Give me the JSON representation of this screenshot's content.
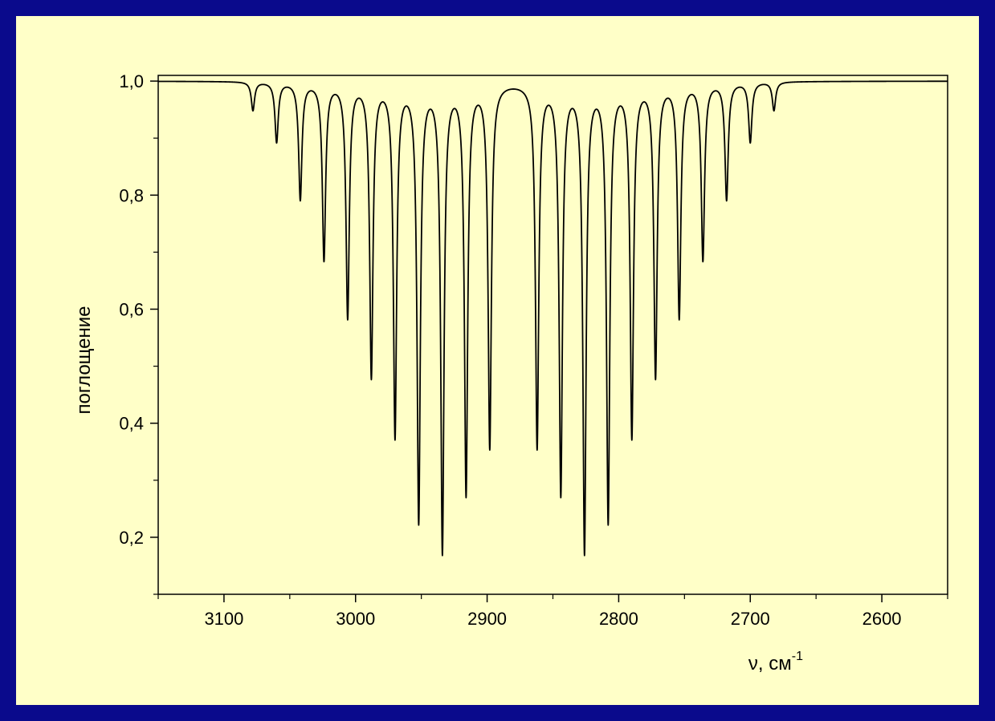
{
  "colors": {
    "border": "#0a0a8c",
    "background": "#ffffc8",
    "line": "#000000"
  },
  "chart_data": {
    "type": "line",
    "title": "",
    "xlabel": "ν, см",
    "xlabel_superscript": "-1",
    "ylabel": "поглощение",
    "xlim": [
      3150,
      2550
    ],
    "x_reversed": true,
    "ylim": [
      0.1,
      1.01
    ],
    "x_ticks": [
      3100,
      3000,
      2900,
      2800,
      2700,
      2600
    ],
    "x_tick_labels": [
      "3100",
      "3000",
      "2900",
      "2800",
      "2700",
      "2600"
    ],
    "y_ticks": [
      0.2,
      0.4,
      0.6,
      0.8,
      1.0
    ],
    "y_tick_labels": [
      "0,2",
      "0,4",
      "0,6",
      "0,8",
      "1,0"
    ],
    "grid": false,
    "legend": "none",
    "baseline": 1.0,
    "series": [
      {
        "peaks": [
          {
            "x": 3078,
            "y": 0.95
          },
          {
            "x": 3060,
            "y": 0.895
          },
          {
            "x": 3042,
            "y": 0.795
          },
          {
            "x": 3024,
            "y": 0.69
          },
          {
            "x": 3006,
            "y": 0.59
          },
          {
            "x": 2988,
            "y": 0.487
          },
          {
            "x": 2970,
            "y": 0.383
          },
          {
            "x": 2952,
            "y": 0.235
          },
          {
            "x": 2934,
            "y": 0.182
          },
          {
            "x": 2916,
            "y": 0.283
          },
          {
            "x": 2898,
            "y": 0.363
          },
          {
            "x": 2862,
            "y": 0.363
          },
          {
            "x": 2844,
            "y": 0.283
          },
          {
            "x": 2826,
            "y": 0.182
          },
          {
            "x": 2808,
            "y": 0.235
          },
          {
            "x": 2790,
            "y": 0.383
          },
          {
            "x": 2772,
            "y": 0.487
          },
          {
            "x": 2754,
            "y": 0.59
          },
          {
            "x": 2736,
            "y": 0.69
          },
          {
            "x": 2718,
            "y": 0.795
          },
          {
            "x": 2700,
            "y": 0.895
          },
          {
            "x": 2682,
            "y": 0.95
          }
        ]
      }
    ]
  }
}
